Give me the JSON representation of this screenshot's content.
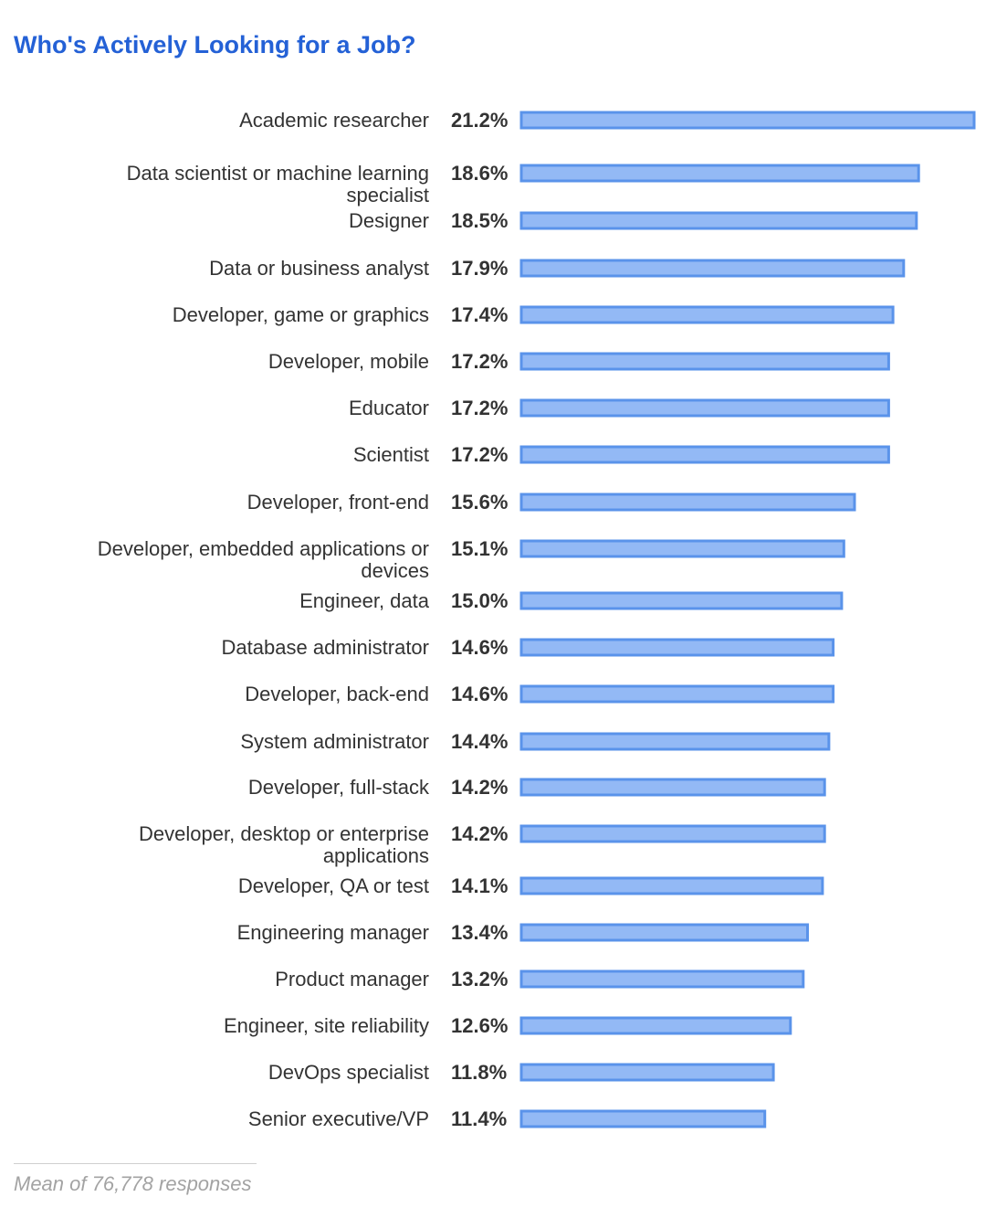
{
  "chart_data": {
    "type": "bar",
    "orientation": "horizontal",
    "title": "Who's Actively Looking for a Job?",
    "xlabel": "",
    "ylabel": "",
    "unit": "%",
    "grid": false,
    "xlim": [
      0,
      21.2
    ],
    "categories": [
      "Academic researcher",
      "Data scientist or machine learning specialist",
      "Designer",
      "Data or business analyst",
      "Developer, game or graphics",
      "Developer, mobile",
      "Educator",
      "Scientist",
      "Developer, front-end",
      "Developer, embedded applications or devices",
      "Engineer, data",
      "Database administrator",
      "Developer, back-end",
      "System administrator",
      "Developer, full-stack",
      "Developer, desktop or enterprise applications",
      "Developer, QA or test",
      "Engineering manager",
      "Product manager",
      "Engineer, site reliability",
      "DevOps specialist",
      "Senior executive/VP"
    ],
    "category_lines": [
      [
        "Academic researcher"
      ],
      [
        "Data scientist or machine learning",
        "specialist"
      ],
      [
        "Designer"
      ],
      [
        "Data or business analyst"
      ],
      [
        "Developer, game or graphics"
      ],
      [
        "Developer, mobile"
      ],
      [
        "Educator"
      ],
      [
        "Scientist"
      ],
      [
        "Developer, front-end"
      ],
      [
        "Developer, embedded applications or",
        "devices"
      ],
      [
        "Engineer, data"
      ],
      [
        "Database administrator"
      ],
      [
        "Developer, back-end"
      ],
      [
        "System administrator"
      ],
      [
        "Developer, full-stack"
      ],
      [
        "Developer, desktop or enterprise",
        "applications"
      ],
      [
        "Developer, QA or test"
      ],
      [
        "Engineering manager"
      ],
      [
        "Product manager"
      ],
      [
        "Engineer, site reliability"
      ],
      [
        "DevOps specialist"
      ],
      [
        "Senior executive/VP"
      ]
    ],
    "values": [
      21.2,
      18.6,
      18.5,
      17.9,
      17.4,
      17.2,
      17.2,
      17.2,
      15.6,
      15.1,
      15.0,
      14.6,
      14.6,
      14.4,
      14.2,
      14.2,
      14.1,
      13.4,
      13.2,
      12.6,
      11.8,
      11.4
    ],
    "value_labels": [
      "21.2%",
      "18.6%",
      "18.5%",
      "17.9%",
      "17.4%",
      "17.2%",
      "17.2%",
      "17.2%",
      "15.6%",
      "15.1%",
      "15.0%",
      "14.6%",
      "14.6%",
      "14.4%",
      "14.2%",
      "14.2%",
      "14.1%",
      "13.4%",
      "13.2%",
      "12.6%",
      "11.8%",
      "11.4%"
    ],
    "colors": {
      "bar_fill": "#93b9f5",
      "bar_stroke": "#5a93ea",
      "title": "#2461d6"
    },
    "footnote": "Mean of 76,778 responses"
  }
}
